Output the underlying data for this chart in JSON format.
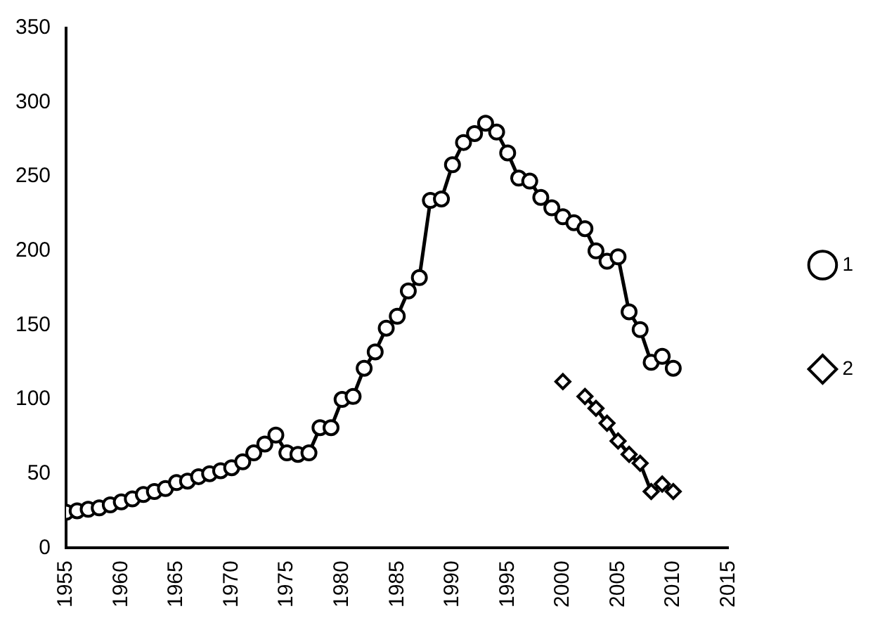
{
  "chart_data": {
    "type": "line",
    "xlim": [
      1955,
      2015
    ],
    "xticks": [
      1955,
      1960,
      1965,
      1970,
      1975,
      1980,
      1985,
      1990,
      1995,
      2000,
      2005,
      2010,
      2015
    ],
    "ylim": [
      0,
      350
    ],
    "yticks": [
      0,
      50,
      100,
      150,
      200,
      250,
      300,
      350
    ],
    "legend": "right",
    "grid": false,
    "line_style": "solid",
    "series": [
      {
        "name": "1",
        "color": "#000000",
        "marker": "circle",
        "x": [
          1955,
          1956,
          1957,
          1958,
          1959,
          1960,
          1961,
          1962,
          1963,
          1964,
          1965,
          1966,
          1967,
          1968,
          1969,
          1970,
          1971,
          1972,
          1973,
          1974,
          1975,
          1976,
          1977,
          1978,
          1979,
          1980,
          1981,
          1982,
          1983,
          1984,
          1985,
          1986,
          1987,
          1988,
          1989,
          1990,
          1991,
          1992,
          1993,
          1994,
          1995,
          1996,
          1997,
          1998,
          1999,
          2000,
          2001,
          2002,
          2003,
          2004,
          2005,
          2006,
          2007,
          2008,
          2009,
          2010
        ],
        "values": [
          24,
          25,
          26,
          27,
          29,
          31,
          33,
          36,
          38,
          40,
          44,
          45,
          48,
          50,
          52,
          54,
          58,
          64,
          70,
          76,
          64,
          63,
          64,
          81,
          81,
          100,
          102,
          121,
          132,
          148,
          156,
          173,
          182,
          234,
          235,
          258,
          273,
          279,
          286,
          280,
          266,
          249,
          247,
          236,
          229,
          223,
          219,
          215,
          200,
          193,
          196,
          159,
          147,
          125,
          129,
          121
        ]
      },
      {
        "name": "2",
        "color": "#000000",
        "marker": "diamond",
        "x": [
          2000,
          2001,
          2002,
          2003,
          2004,
          2005,
          2006,
          2007,
          2008,
          2009,
          2010
        ],
        "values": [
          112,
          null,
          102,
          94,
          84,
          72,
          63,
          57,
          38,
          43,
          38
        ]
      }
    ]
  }
}
